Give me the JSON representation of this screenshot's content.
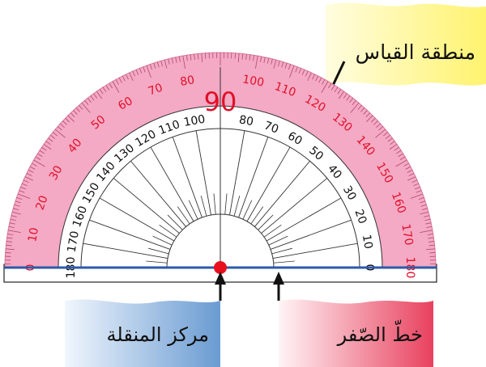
{
  "labels": {
    "measure_area": "منطقة القياس",
    "zero_line": "خطّ الصّفر",
    "center": "مركز المنقلة"
  },
  "scales": {
    "outer": [
      "0",
      "10",
      "20",
      "30",
      "40",
      "50",
      "60",
      "70",
      "80",
      "90",
      "100",
      "110",
      "120",
      "130",
      "140",
      "150",
      "160",
      "170",
      "180"
    ],
    "inner": [
      "180",
      "170",
      "160",
      "150",
      "140",
      "130",
      "120",
      "110",
      "100",
      "90",
      "80",
      "70",
      "60",
      "50",
      "40",
      "30",
      "20",
      "10",
      "0"
    ]
  },
  "colors": {
    "outer_band": "#f4a9c4",
    "inner_face": "#ffffff",
    "outer_numbers": "#e0102a",
    "inner_numbers": "#111111",
    "baseline": "#2e5aa8",
    "center_dot": "#e8101e",
    "flag_yellow": "#fff07a",
    "flag_pink": "#e9506a",
    "flag_blue": "#6f9fd4"
  }
}
